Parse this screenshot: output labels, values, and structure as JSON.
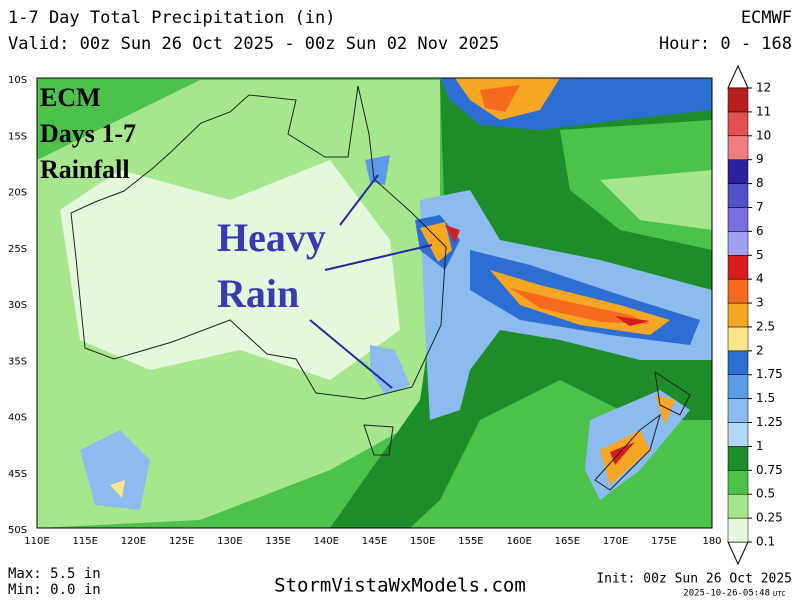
{
  "header": {
    "title": "1-7 Day Total Precipitation (in)",
    "model": "ECMWF",
    "valid": "Valid: 00z Sun 26 Oct 2025 - 00z Sun 02 Nov 2025",
    "hours": "Hour: 0 - 168"
  },
  "map": {
    "lat_labels": [
      "10S",
      "15S",
      "20S",
      "25S",
      "30S",
      "35S",
      "40S",
      "45S",
      "50S"
    ],
    "lon_labels": [
      "110E",
      "115E",
      "120E",
      "125E",
      "130E",
      "135E",
      "140E",
      "145E",
      "150E",
      "155E",
      "160E",
      "165E",
      "170E",
      "175E",
      "180"
    ],
    "overlay": [
      "ECM",
      "Days 1-7",
      "Rainfall"
    ],
    "annotation": [
      "Heavy",
      "Rain"
    ]
  },
  "colorbar": {
    "levels": [
      0.1,
      0.25,
      0.5,
      0.75,
      1,
      1.25,
      1.5,
      1.75,
      2,
      2.5,
      3,
      4,
      5,
      6,
      7,
      8,
      9,
      10,
      11,
      12
    ],
    "colors": [
      "#e6f8dc",
      "#a6e68c",
      "#4cc24a",
      "#1e8c28",
      "#b4d7f5",
      "#8cbbf0",
      "#5a9be6",
      "#2d6ed2",
      "#fde68a",
      "#f5a623",
      "#f56a1e",
      "#d71e1e",
      "#a0a0f0",
      "#7a70e0",
      "#5050c8",
      "#2a20a0",
      "#f08080",
      "#e05050",
      "#b82020"
    ]
  },
  "footer": {
    "max": "Max: 5.5 in",
    "min": "Min: 0.0 in",
    "site": "StormVistaWxModels.com",
    "init": "Init: 00z Sun 26 Oct 2025",
    "timestamp": "2025-10-26-05:48",
    "tz": "UTC"
  }
}
